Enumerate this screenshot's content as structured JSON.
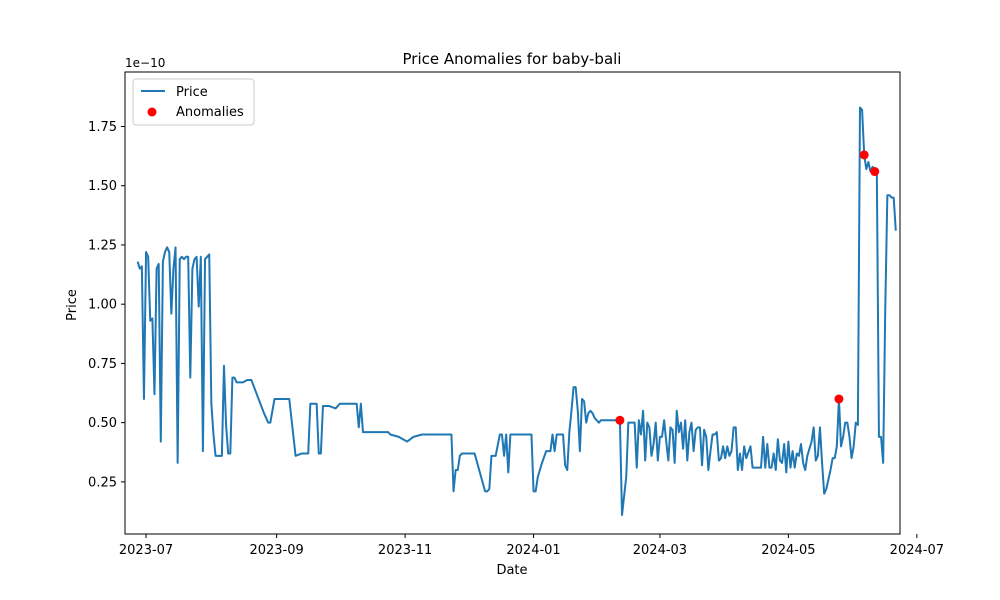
{
  "chart_data": {
    "type": "line",
    "title": "Price Anomalies for baby-bali",
    "xlabel": "Date",
    "ylabel": "Price",
    "y_offset_text": "1e−10",
    "xlim_days": [
      -10,
      358
    ],
    "ylim": [
      0.03,
      1.98
    ],
    "x_ticks": [
      {
        "day": 0,
        "label": "2023-07"
      },
      {
        "day": 62,
        "label": "2023-09"
      },
      {
        "day": 123,
        "label": "2023-11"
      },
      {
        "day": 184,
        "label": "2024-01"
      },
      {
        "day": 244,
        "label": "2024-03"
      },
      {
        "day": 305,
        "label": "2024-05"
      },
      {
        "day": 366,
        "label": "2024-07"
      }
    ],
    "y_ticks": [
      {
        "value": 0.25,
        "label": "0.25"
      },
      {
        "value": 0.5,
        "label": "0.50"
      },
      {
        "value": 0.75,
        "label": "0.75"
      },
      {
        "value": 1.0,
        "label": "1.00"
      },
      {
        "value": 1.25,
        "label": "1.25"
      },
      {
        "value": 1.5,
        "label": "1.50"
      },
      {
        "value": 1.75,
        "label": "1.75"
      }
    ],
    "grid": false,
    "legend": {
      "location": "upper-left",
      "entries": [
        {
          "label": "Price",
          "kind": "line"
        },
        {
          "label": "Anomalies",
          "kind": "scatter"
        }
      ]
    },
    "colors": {
      "price": "#1f77b4",
      "anomaly": "#ff0000"
    },
    "series": [
      {
        "name": "Price",
        "x_unit": "days since 2023-07-01",
        "points": [
          [
            -4,
            1.18
          ],
          [
            -3,
            1.15
          ],
          [
            -2,
            1.16
          ],
          [
            -1,
            0.6
          ],
          [
            0,
            1.22
          ],
          [
            1,
            1.2
          ],
          [
            2,
            0.93
          ],
          [
            3,
            0.94
          ],
          [
            4,
            0.62
          ],
          [
            5,
            1.15
          ],
          [
            6,
            1.17
          ],
          [
            7,
            0.42
          ],
          [
            8,
            1.18
          ],
          [
            9,
            1.22
          ],
          [
            10,
            1.24
          ],
          [
            11,
            1.22
          ],
          [
            12,
            0.96
          ],
          [
            13,
            1.15
          ],
          [
            14,
            1.24
          ],
          [
            15,
            0.33
          ],
          [
            16,
            1.19
          ],
          [
            17,
            1.2
          ],
          [
            18,
            1.19
          ],
          [
            19,
            1.2
          ],
          [
            20,
            1.2
          ],
          [
            21,
            0.69
          ],
          [
            22,
            1.15
          ],
          [
            23,
            1.19
          ],
          [
            24,
            1.2
          ],
          [
            25,
            0.99
          ],
          [
            26,
            1.2
          ],
          [
            27,
            0.38
          ],
          [
            28,
            1.19
          ],
          [
            29,
            1.2
          ],
          [
            30,
            1.21
          ],
          [
            31,
            0.58
          ],
          [
            32,
            0.45
          ],
          [
            33,
            0.36
          ],
          [
            34,
            0.36
          ],
          [
            35,
            0.36
          ],
          [
            36,
            0.36
          ],
          [
            37,
            0.74
          ],
          [
            38,
            0.49
          ],
          [
            39,
            0.37
          ],
          [
            40,
            0.37
          ],
          [
            41,
            0.69
          ],
          [
            42,
            0.69
          ],
          [
            43,
            0.67
          ],
          [
            44,
            0.67
          ],
          [
            46,
            0.67
          ],
          [
            48,
            0.68
          ],
          [
            50,
            0.68
          ],
          [
            56,
            0.54
          ],
          [
            58,
            0.5
          ],
          [
            59,
            0.5
          ],
          [
            61,
            0.6
          ],
          [
            63,
            0.6
          ],
          [
            65,
            0.6
          ],
          [
            68,
            0.6
          ],
          [
            71,
            0.36
          ],
          [
            74,
            0.37
          ],
          [
            77,
            0.37
          ],
          [
            78,
            0.58
          ],
          [
            81,
            0.58
          ],
          [
            82,
            0.37
          ],
          [
            83,
            0.37
          ],
          [
            84,
            0.57
          ],
          [
            87,
            0.57
          ],
          [
            90,
            0.56
          ],
          [
            92,
            0.58
          ],
          [
            95,
            0.58
          ],
          [
            100,
            0.58
          ],
          [
            101,
            0.48
          ],
          [
            102,
            0.58
          ],
          [
            103,
            0.46
          ],
          [
            105,
            0.46
          ],
          [
            108,
            0.46
          ],
          [
            110,
            0.46
          ],
          [
            115,
            0.46
          ],
          [
            116,
            0.45
          ],
          [
            120,
            0.44
          ],
          [
            124,
            0.42
          ],
          [
            127,
            0.44
          ],
          [
            131,
            0.45
          ],
          [
            135,
            0.45
          ],
          [
            140,
            0.45
          ],
          [
            145,
            0.45
          ],
          [
            146,
            0.21
          ],
          [
            147,
            0.3
          ],
          [
            148,
            0.3
          ],
          [
            149,
            0.36
          ],
          [
            150,
            0.37
          ],
          [
            155,
            0.37
          ],
          [
            156,
            0.37
          ],
          [
            161,
            0.21
          ],
          [
            162,
            0.21
          ],
          [
            163,
            0.22
          ],
          [
            164,
            0.36
          ],
          [
            166,
            0.36
          ],
          [
            168,
            0.45
          ],
          [
            169,
            0.45
          ],
          [
            170,
            0.36
          ],
          [
            171,
            0.45
          ],
          [
            172,
            0.29
          ],
          [
            173,
            0.45
          ],
          [
            174,
            0.45
          ],
          [
            175,
            0.45
          ],
          [
            178,
            0.45
          ],
          [
            180,
            0.45
          ],
          [
            182,
            0.45
          ],
          [
            183,
            0.45
          ],
          [
            184,
            0.21
          ],
          [
            185,
            0.21
          ],
          [
            186,
            0.27
          ],
          [
            188,
            0.33
          ],
          [
            190,
            0.38
          ],
          [
            192,
            0.38
          ],
          [
            193,
            0.45
          ],
          [
            194,
            0.38
          ],
          [
            195,
            0.45
          ],
          [
            196,
            0.45
          ],
          [
            198,
            0.45
          ],
          [
            199,
            0.32
          ],
          [
            200,
            0.3
          ],
          [
            201,
            0.46
          ],
          [
            202,
            0.55
          ],
          [
            203,
            0.65
          ],
          [
            204,
            0.65
          ],
          [
            205,
            0.55
          ],
          [
            206,
            0.38
          ],
          [
            207,
            0.6
          ],
          [
            208,
            0.59
          ],
          [
            209,
            0.5
          ],
          [
            210,
            0.54
          ],
          [
            211,
            0.55
          ],
          [
            212,
            0.54
          ],
          [
            213,
            0.52
          ],
          [
            214,
            0.51
          ],
          [
            215,
            0.5
          ],
          [
            216,
            0.51
          ],
          [
            221,
            0.51
          ],
          [
            225,
            0.51
          ],
          [
            226,
            0.11
          ],
          [
            228,
            0.27
          ],
          [
            229,
            0.5
          ],
          [
            230,
            0.5
          ],
          [
            232,
            0.5
          ],
          [
            233,
            0.31
          ],
          [
            234,
            0.51
          ],
          [
            235,
            0.45
          ],
          [
            236,
            0.55
          ],
          [
            237,
            0.34
          ],
          [
            238,
            0.5
          ],
          [
            239,
            0.48
          ],
          [
            240,
            0.36
          ],
          [
            241,
            0.41
          ],
          [
            242,
            0.5
          ],
          [
            243,
            0.34
          ],
          [
            244,
            0.44
          ],
          [
            245,
            0.44
          ],
          [
            246,
            0.51
          ],
          [
            247,
            0.42
          ],
          [
            248,
            0.34
          ],
          [
            249,
            0.48
          ],
          [
            250,
            0.47
          ],
          [
            251,
            0.33
          ],
          [
            252,
            0.55
          ],
          [
            253,
            0.46
          ],
          [
            254,
            0.5
          ],
          [
            255,
            0.39
          ],
          [
            256,
            0.51
          ],
          [
            257,
            0.34
          ],
          [
            258,
            0.46
          ],
          [
            259,
            0.5
          ],
          [
            260,
            0.38
          ],
          [
            261,
            0.47
          ],
          [
            262,
            0.48
          ],
          [
            263,
            0.48
          ],
          [
            264,
            0.32
          ],
          [
            265,
            0.47
          ],
          [
            266,
            0.44
          ],
          [
            267,
            0.3
          ],
          [
            268,
            0.38
          ],
          [
            269,
            0.45
          ],
          [
            270,
            0.45
          ],
          [
            271,
            0.46
          ],
          [
            272,
            0.34
          ],
          [
            273,
            0.35
          ],
          [
            274,
            0.4
          ],
          [
            275,
            0.35
          ],
          [
            276,
            0.4
          ],
          [
            277,
            0.36
          ],
          [
            278,
            0.38
          ],
          [
            279,
            0.48
          ],
          [
            280,
            0.48
          ],
          [
            281,
            0.3
          ],
          [
            282,
            0.37
          ],
          [
            283,
            0.3
          ],
          [
            284,
            0.4
          ],
          [
            285,
            0.35
          ],
          [
            287,
            0.4
          ],
          [
            288,
            0.31
          ],
          [
            290,
            0.31
          ],
          [
            292,
            0.31
          ],
          [
            293,
            0.44
          ],
          [
            294,
            0.31
          ],
          [
            295,
            0.41
          ],
          [
            296,
            0.31
          ],
          [
            297,
            0.31
          ],
          [
            298,
            0.37
          ],
          [
            299,
            0.3
          ],
          [
            300,
            0.43
          ],
          [
            301,
            0.34
          ],
          [
            302,
            0.33
          ],
          [
            303,
            0.41
          ],
          [
            304,
            0.29
          ],
          [
            305,
            0.42
          ],
          [
            306,
            0.31
          ],
          [
            307,
            0.38
          ],
          [
            308,
            0.31
          ],
          [
            309,
            0.37
          ],
          [
            310,
            0.36
          ],
          [
            311,
            0.41
          ],
          [
            312,
            0.33
          ],
          [
            313,
            0.3
          ],
          [
            314,
            0.36
          ],
          [
            315,
            0.39
          ],
          [
            316,
            0.42
          ],
          [
            317,
            0.48
          ],
          [
            318,
            0.34
          ],
          [
            319,
            0.36
          ],
          [
            320,
            0.48
          ],
          [
            321,
            0.33
          ],
          [
            322,
            0.2
          ],
          [
            323,
            0.22
          ],
          [
            324,
            0.26
          ],
          [
            325,
            0.3
          ],
          [
            326,
            0.35
          ],
          [
            327,
            0.35
          ],
          [
            328,
            0.4
          ],
          [
            329,
            0.6
          ],
          [
            330,
            0.4
          ],
          [
            331,
            0.44
          ],
          [
            332,
            0.5
          ],
          [
            333,
            0.5
          ],
          [
            334,
            0.44
          ],
          [
            335,
            0.35
          ],
          [
            336,
            0.4
          ],
          [
            337,
            0.5
          ],
          [
            338,
            0.49
          ],
          [
            339,
            1.83
          ],
          [
            340,
            1.82
          ],
          [
            341,
            1.63
          ],
          [
            342,
            1.57
          ],
          [
            343,
            1.6
          ],
          [
            344,
            1.56
          ],
          [
            345,
            1.58
          ],
          [
            346,
            1.56
          ],
          [
            347,
            1.56
          ],
          [
            348,
            0.44
          ],
          [
            349,
            0.44
          ],
          [
            350,
            0.33
          ],
          [
            351,
            0.98
          ],
          [
            352,
            1.46
          ],
          [
            353,
            1.46
          ],
          [
            354,
            1.45
          ],
          [
            355,
            1.45
          ],
          [
            356,
            1.31
          ]
        ]
      },
      {
        "name": "Anomalies",
        "x_unit": "days since 2023-07-01",
        "points": [
          [
            225,
            0.51
          ],
          [
            329,
            0.6
          ],
          [
            341,
            1.63
          ],
          [
            346,
            1.56
          ]
        ]
      }
    ]
  }
}
